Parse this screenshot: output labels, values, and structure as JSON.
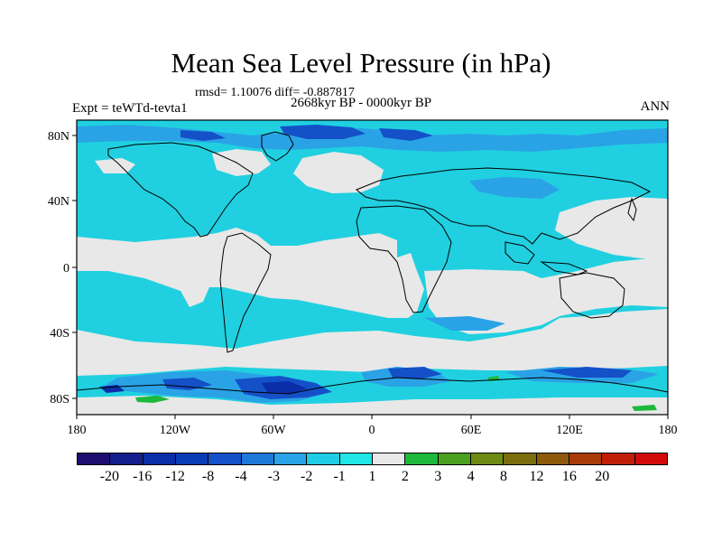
{
  "title": "Mean Sea Level Pressure (in hPa)",
  "stats": "rmsd= 1.10076 diff= -0.887817",
  "period": "2668kyr BP - 0000kyr BP",
  "experiment": "Expt = teWTd-tevta1",
  "season": "ANN",
  "axes": {
    "lat_labels": [
      "80N",
      "40N",
      "0",
      "40S",
      "80S"
    ],
    "lon_labels": [
      "180",
      "120W",
      "60W",
      "0",
      "60E",
      "120E",
      "180"
    ]
  },
  "colorbar": {
    "colors": [
      "#1e0f6e",
      "#141e8c",
      "#0a2ea8",
      "#083cb4",
      "#1450c8",
      "#1e78d8",
      "#2aa2e6",
      "#20cde6",
      "#20e6e6",
      "#e8e8e8",
      "#1eb83c",
      "#4aa01e",
      "#6e8c14",
      "#7a6e0e",
      "#8c5a0a",
      "#a83c08",
      "#c01e08",
      "#d20a0a"
    ],
    "labels": [
      "-20",
      "-16",
      "-12",
      "-8",
      "-4",
      "-3",
      "-2",
      "-1",
      "1",
      "2",
      "3",
      "4",
      "8",
      "12",
      "16",
      "20"
    ]
  },
  "chart_data": {
    "type": "heatmap",
    "title": "Mean Sea Level Pressure (in hPa)",
    "subtitle": "2668kyr BP - 0000kyr BP",
    "variable": "Mean Sea Level Pressure difference",
    "units": "hPa",
    "x_range": [
      -180,
      180
    ],
    "y_range": [
      -90,
      90
    ],
    "x_ticks": [
      "180",
      "120W",
      "60W",
      "0",
      "60E",
      "120E",
      "180"
    ],
    "y_ticks": [
      "80N",
      "40N",
      "0",
      "40S",
      "80S"
    ],
    "levels": [
      -20,
      -16,
      -12,
      -8,
      -4,
      -3,
      -2,
      -1,
      1,
      2,
      3,
      4,
      8,
      12,
      16,
      20
    ],
    "rmsd": 1.10076,
    "diff": -0.887817
  }
}
